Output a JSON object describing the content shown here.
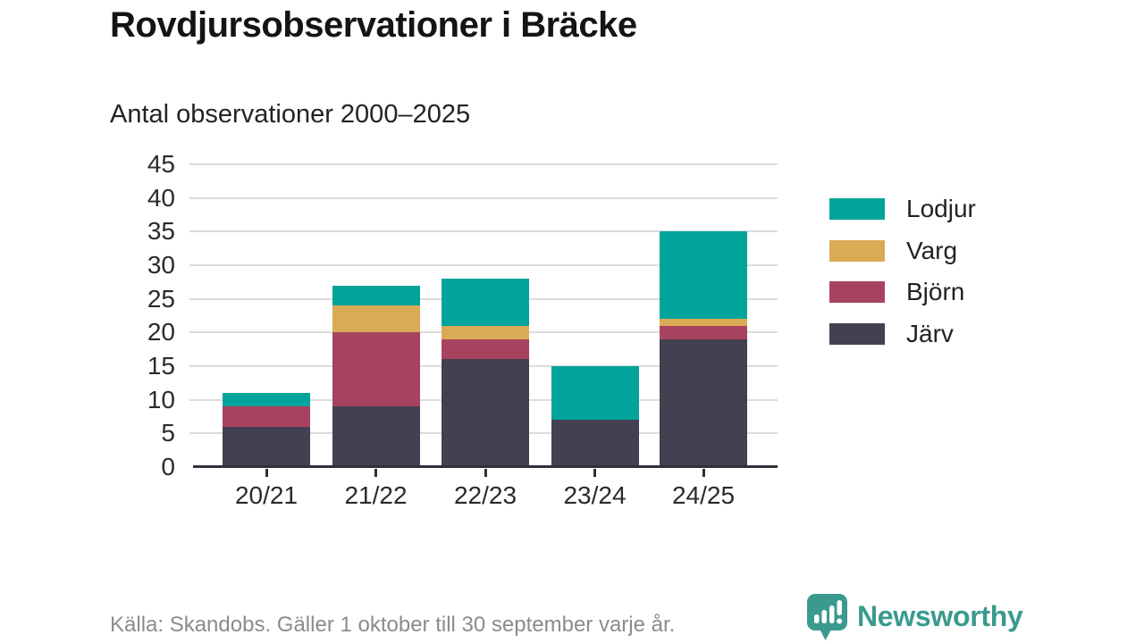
{
  "title": "Rovdjursobservationer i Bräcke",
  "subtitle": "Antal observationer 2000–2025",
  "footer": {
    "source": "Källa: Skandobs. Gäller 1 oktober till 30 september varje år."
  },
  "branding": {
    "name": "Newsworthy",
    "color": "#3a9a8e",
    "icon": "newsworthy-speech-bubble-bar-chart-icon",
    "icon_color": "#3a9a8e"
  },
  "colors": {
    "grid": "#dcdcdc",
    "axis": "#322f3b",
    "tick_label": "#2b2b2b",
    "background": "#ffffff"
  },
  "chart_data": {
    "type": "bar",
    "stacked": true,
    "title": "Rovdjursobservationer i Bräcke",
    "subtitle": "Antal observationer 2000–2025",
    "categories": [
      "20/21",
      "21/22",
      "22/23",
      "23/24",
      "24/25"
    ],
    "series": [
      {
        "name": "Järv",
        "color": "#434051",
        "values": [
          6,
          9,
          16,
          7,
          19
        ]
      },
      {
        "name": "Björn",
        "color": "#a8435f",
        "values": [
          3,
          11,
          3,
          0,
          2
        ]
      },
      {
        "name": "Varg",
        "color": "#d9ab55",
        "values": [
          0,
          4,
          2,
          0,
          1
        ]
      },
      {
        "name": "Lodjur",
        "color": "#00a49a",
        "values": [
          2,
          3,
          7,
          8,
          13
        ]
      }
    ],
    "totals": [
      11,
      27,
      28,
      15,
      35
    ],
    "ylim": [
      0,
      45
    ],
    "yticks": [
      0,
      5,
      10,
      15,
      20,
      25,
      30,
      35,
      40,
      45
    ],
    "xlabel": "",
    "ylabel": "",
    "grid": true,
    "legend_position": "right",
    "legend_order": [
      "Lodjur",
      "Varg",
      "Björn",
      "Järv"
    ]
  }
}
